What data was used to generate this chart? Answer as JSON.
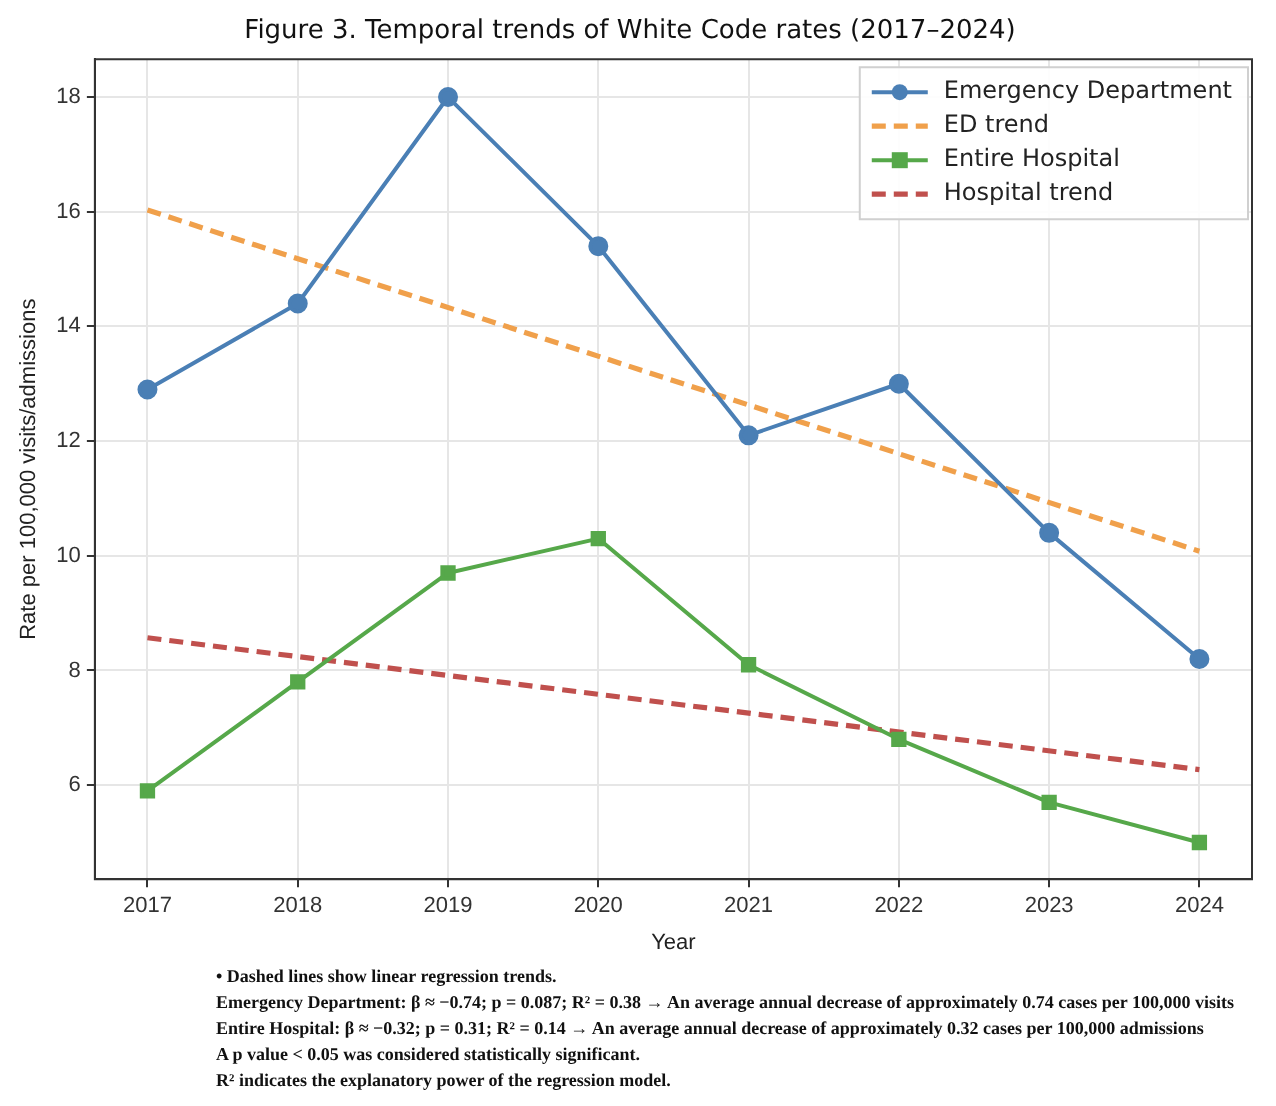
{
  "chart_data": {
    "type": "line",
    "title": "Figure 3. Temporal trends of White Code rates (2017–2024)",
    "xlabel": "Year",
    "ylabel": "Rate per 100,000 visits/admissions",
    "xlim": [
      2016.65,
      2024.35
    ],
    "xticks": [
      2017,
      2018,
      2019,
      2020,
      2021,
      2022,
      2023,
      2024
    ],
    "ylim": [
      4.36,
      18.66
    ],
    "yticks": [
      6,
      8,
      10,
      12,
      14,
      16,
      18
    ],
    "grid": true,
    "legend": "top right",
    "series": [
      {
        "name": "Emergency Department",
        "color": "#4a7fb5",
        "x": [
          2017,
          2018,
          2019,
          2020,
          2021,
          2022,
          2023,
          2024
        ],
        "values": [
          12.9,
          14.4,
          18.0,
          15.4,
          12.1,
          13.0,
          10.4,
          8.2
        ],
        "marker": "circle",
        "line_style": "solid"
      },
      {
        "name": "ED trend",
        "color": "#f0a04b",
        "x": [
          2017,
          2024
        ],
        "values": [
          16.03,
          10.08
        ],
        "marker": "none",
        "line_style": "dashed"
      },
      {
        "name": "Entire Hospital",
        "color": "#56a84a",
        "x": [
          2017,
          2018,
          2019,
          2020,
          2021,
          2022,
          2023,
          2024
        ],
        "values": [
          5.9,
          7.8,
          9.7,
          10.3,
          8.1,
          6.8,
          5.7,
          5.0
        ],
        "marker": "square",
        "line_style": "solid"
      },
      {
        "name": "Hospital trend",
        "color": "#c0504d",
        "x": [
          2017,
          2024
        ],
        "values": [
          8.57,
          6.27
        ],
        "marker": "none",
        "line_style": "dashed"
      }
    ],
    "annotations": [
      "• Dashed lines show linear regression trends.",
      "Emergency Department: β ≈ −0.74; p = 0.087; R² = 0.38 → An average annual decrease of approximately 0.74 cases per 100,000 visits",
      "Entire Hospital: β ≈ −0.32; p = 0.31; R² = 0.14 → An average annual decrease of approximately 0.32 cases per 100,000 admissions",
      "A p value < 0.05 was considered statistically significant.",
      "R² indicates the explanatory power of the regression model."
    ]
  }
}
